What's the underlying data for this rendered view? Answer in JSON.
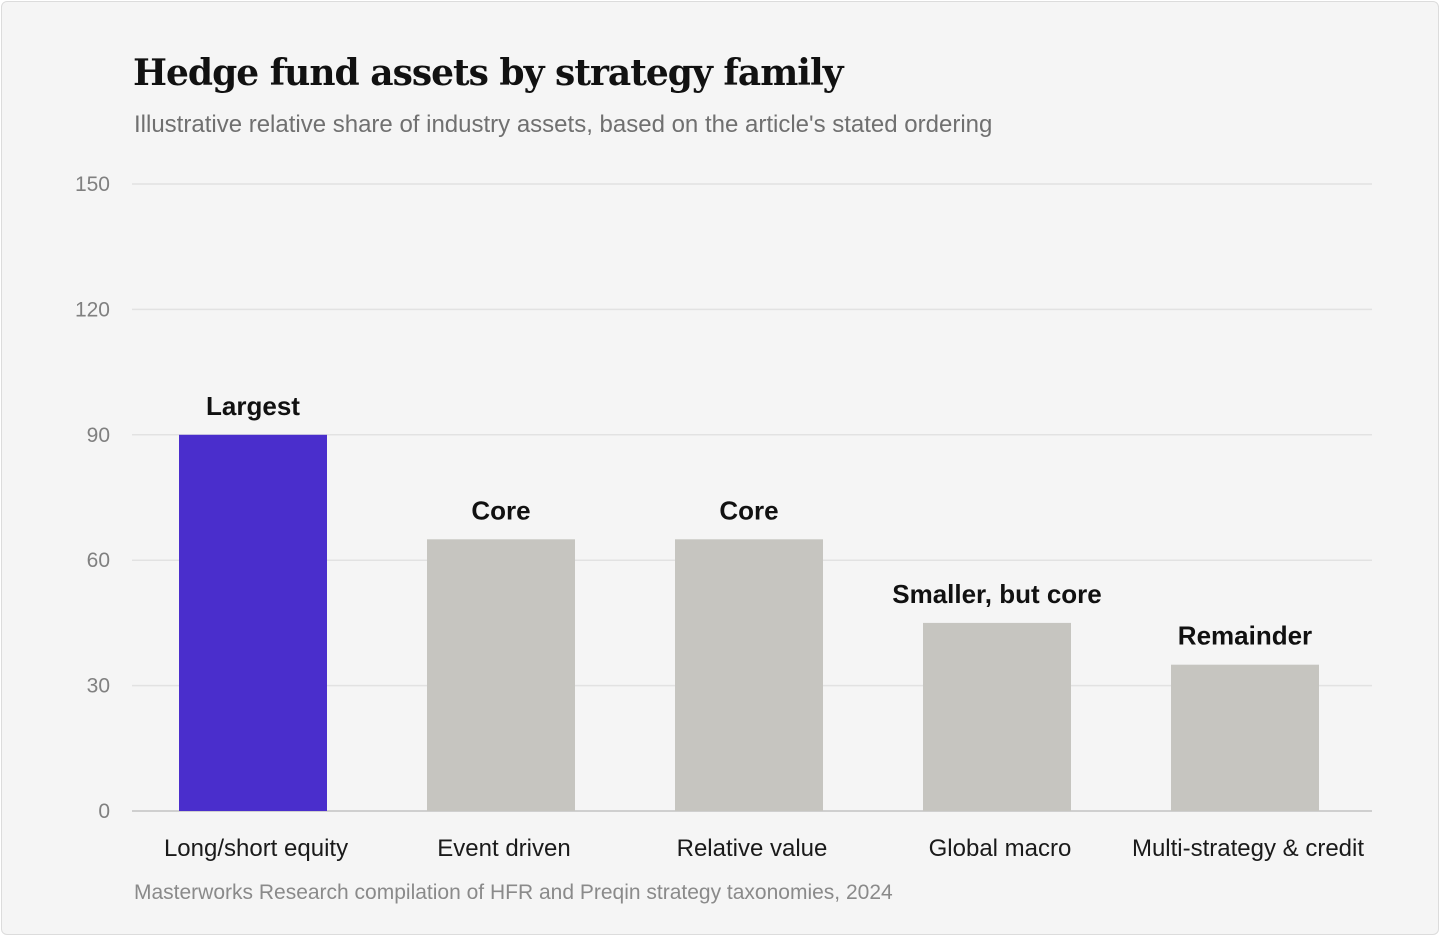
{
  "chart_data": {
    "type": "bar",
    "title": "Hedge fund assets by strategy family",
    "subtitle": "Illustrative relative share of industry assets, based on the article's stated ordering",
    "source": "Masterworks Research compilation of HFR and Preqin strategy taxonomies, 2024",
    "categories": [
      "Long/short equity",
      "Event driven",
      "Relative value",
      "Global macro",
      "Multi-strategy & credit"
    ],
    "values": [
      90,
      65,
      65,
      45,
      35
    ],
    "data_labels": [
      "Largest",
      "Core",
      "Core",
      "Smaller, but core",
      "Remainder"
    ],
    "xlabel": "",
    "ylabel": "",
    "ylim": [
      0,
      150
    ],
    "yticks": [
      0,
      30,
      60,
      90,
      120,
      150
    ],
    "grid": true,
    "legend": "none",
    "colors": {
      "highlight": "#4a2ecc",
      "default": "#c6c5c0",
      "grid": "#e2e2e2",
      "axis": "#cfcfcf"
    },
    "highlight_index": 0
  }
}
